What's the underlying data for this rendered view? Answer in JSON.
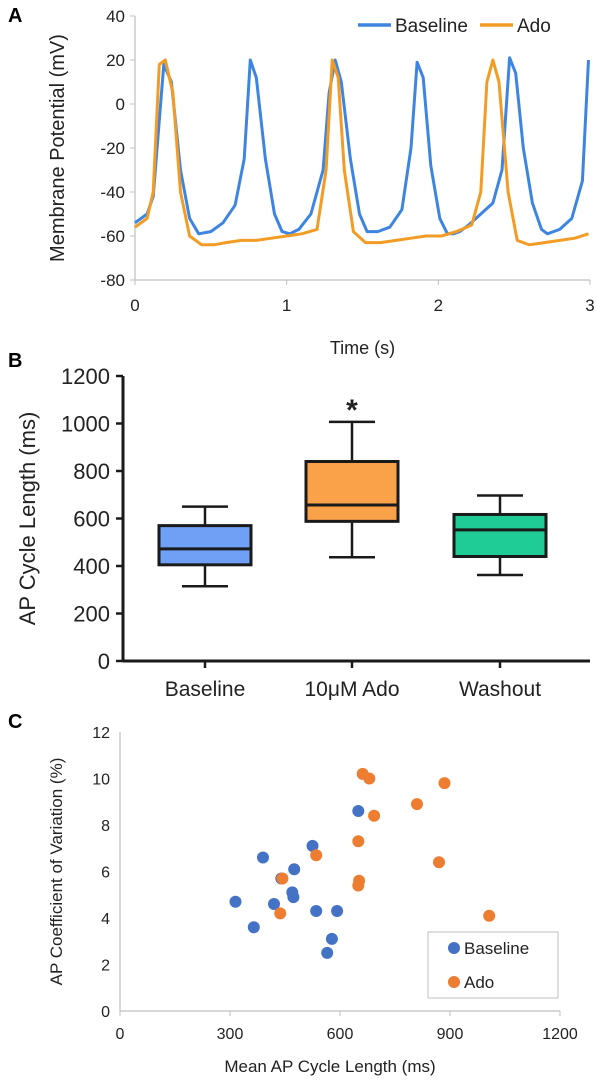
{
  "chart_data": [
    {
      "panel": "A",
      "type": "line",
      "title": "",
      "xlabel": "Time (s)",
      "ylabel": "Membrane Potential (mV)",
      "xlim": [
        0,
        3
      ],
      "ylim": [
        -80,
        40
      ],
      "xticks": [
        "0",
        "1",
        "2",
        "3"
      ],
      "yticks": [
        "40",
        "20",
        "0",
        "-20",
        "-40",
        "-60",
        "-80"
      ],
      "legend": "top-right",
      "series": [
        {
          "name": "Baseline",
          "color": "#3d85e0",
          "x": [
            0,
            0.08,
            0.12,
            0.19,
            0.24,
            0.3,
            0.36,
            0.42,
            0.5,
            0.58,
            0.66,
            0.72,
            0.76,
            0.8,
            0.86,
            0.92,
            0.97,
            1.02,
            1.08,
            1.16,
            1.24,
            1.28,
            1.32,
            1.36,
            1.42,
            1.48,
            1.53,
            1.6,
            1.68,
            1.76,
            1.82,
            1.86,
            1.9,
            1.95,
            2.01,
            2.06,
            2.1,
            2.14,
            2.2,
            2.28,
            2.36,
            2.42,
            2.47,
            2.51,
            2.56,
            2.62,
            2.68,
            2.72,
            2.8,
            2.88,
            2.95,
            2.99
          ],
          "y": [
            -54,
            -50,
            -42,
            18,
            10,
            -30,
            -52,
            -59,
            -58,
            -54,
            -46,
            -25,
            20,
            12,
            -25,
            -50,
            -58,
            -59,
            -57,
            -50,
            -30,
            5,
            20,
            10,
            -25,
            -50,
            -58,
            -58,
            -56,
            -48,
            -20,
            19,
            12,
            -28,
            -52,
            -59,
            -59,
            -58,
            -55,
            -50,
            -45,
            -30,
            21,
            14,
            -20,
            -45,
            -57,
            -59,
            -57,
            -52,
            -35,
            20
          ]
        },
        {
          "name": "Ado",
          "color": "#f39c25",
          "x": [
            0,
            0.08,
            0.12,
            0.16,
            0.2,
            0.25,
            0.3,
            0.36,
            0.44,
            0.52,
            0.6,
            0.7,
            0.8,
            0.9,
            1.0,
            1.1,
            1.2,
            1.26,
            1.3,
            1.34,
            1.38,
            1.44,
            1.52,
            1.62,
            1.72,
            1.82,
            1.92,
            2.02,
            2.12,
            2.22,
            2.28,
            2.32,
            2.36,
            2.4,
            2.46,
            2.52,
            2.6,
            2.7,
            2.8,
            2.9,
            2.99
          ],
          "y": [
            -56,
            -52,
            -40,
            18,
            20,
            5,
            -40,
            -60,
            -64,
            -64,
            -63,
            -62,
            -62,
            -61,
            -60,
            -59,
            -57,
            -30,
            20,
            12,
            -30,
            -58,
            -63,
            -63,
            -62,
            -61,
            -60,
            -60,
            -58,
            -55,
            -40,
            10,
            20,
            10,
            -40,
            -62,
            -64,
            -63,
            -62,
            -61,
            -59
          ]
        }
      ]
    },
    {
      "panel": "B",
      "type": "box",
      "title": "",
      "xlabel": "",
      "ylabel": "AP Cycle Length (ms)",
      "ylim": [
        0,
        1200
      ],
      "yticks": [
        "1200",
        "1000",
        "800",
        "600",
        "400",
        "200",
        "0"
      ],
      "categories": [
        "Baseline",
        "10μM Ado",
        "Washout"
      ],
      "boxes": [
        {
          "category": "Baseline",
          "min": 315,
          "q1": 405,
          "median": 472,
          "q3": 570,
          "max": 650,
          "color": "#6fa0f5"
        },
        {
          "category": "10μM Ado",
          "min": 437,
          "q1": 588,
          "median": 657,
          "q3": 840,
          "max": 1007,
          "color": "#f9a24a"
        },
        {
          "category": "Washout",
          "min": 362,
          "q1": 440,
          "median": 552,
          "q3": 617,
          "max": 697,
          "color": "#1fcc95"
        }
      ],
      "annotations": [
        {
          "category": "10μM Ado",
          "text": "*"
        }
      ]
    },
    {
      "panel": "C",
      "type": "scatter",
      "title": "",
      "xlabel": "Mean AP Cycle Length (ms)",
      "ylabel": "AP Coefficient of Variation (%)",
      "xlim": [
        0,
        1200
      ],
      "ylim": [
        0,
        12
      ],
      "xticks": [
        "0",
        "300",
        "600",
        "900",
        "1200"
      ],
      "yticks": [
        "12",
        "10",
        "8",
        "6",
        "4",
        "2",
        "0"
      ],
      "legend": "bottom-right",
      "series": [
        {
          "name": "Baseline",
          "color": "#4472c4",
          "x": [
            315,
            365,
            390,
            420,
            440,
            470,
            473,
            475,
            525,
            535,
            565,
            578,
            592,
            650
          ],
          "y": [
            4.7,
            3.6,
            6.6,
            4.6,
            5.7,
            5.1,
            4.9,
            6.1,
            7.1,
            4.3,
            2.5,
            3.1,
            4.3,
            8.6
          ]
        },
        {
          "name": "Ado",
          "color": "#ed7d31",
          "x": [
            437,
            443,
            535,
            650,
            652,
            650,
            662,
            680,
            693,
            810,
            870,
            885,
            1007
          ],
          "y": [
            4.2,
            5.7,
            6.7,
            7.3,
            5.6,
            5.4,
            10.2,
            10.0,
            8.4,
            8.9,
            6.4,
            9.8,
            4.1
          ]
        }
      ]
    }
  ]
}
